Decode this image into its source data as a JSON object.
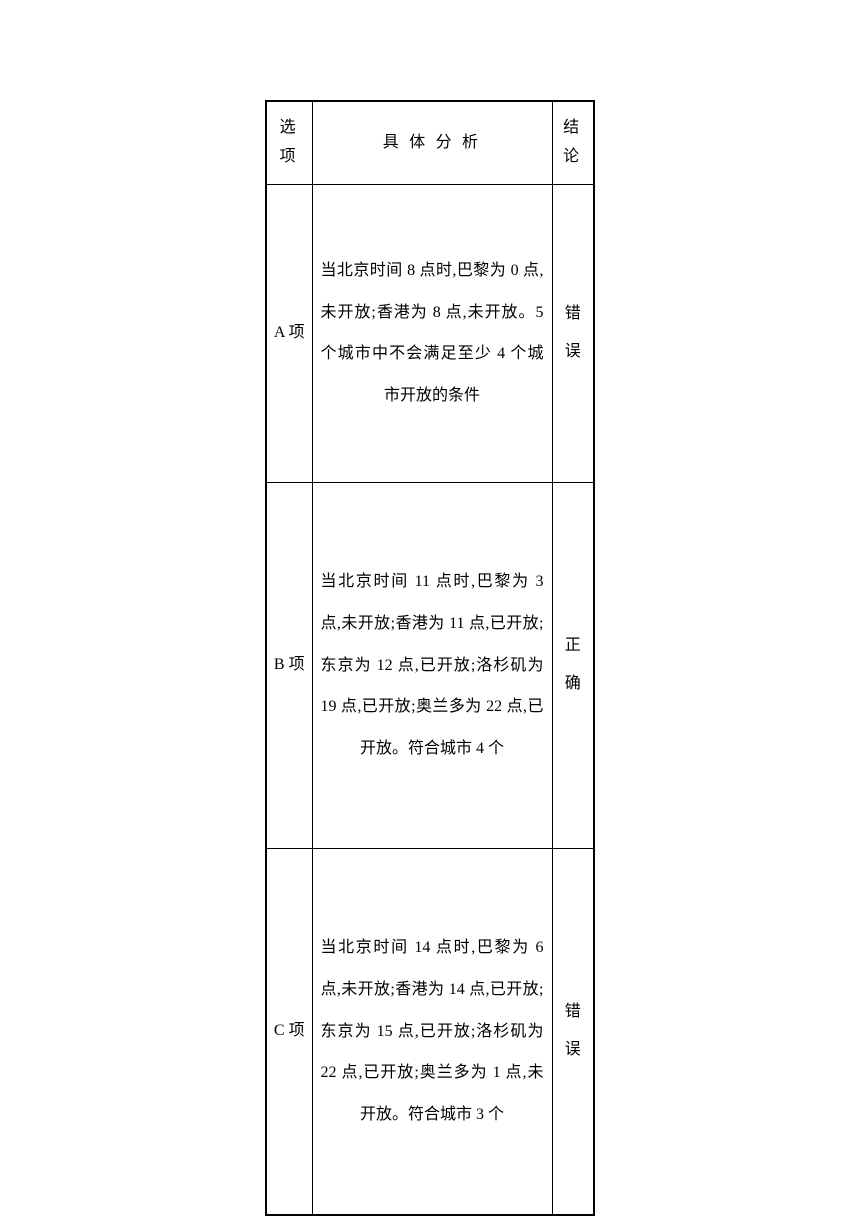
{
  "table": {
    "headers": {
      "option": "选项",
      "analysis": "具 体 分 析",
      "conclusion": "结论"
    },
    "rows": [
      {
        "option": "A 项",
        "analysis": "当北京时间 8 点时,巴黎为 0 点,未开放;香港为 8 点,未开放。5个城市中不会满足至少 4 个城市开放的条件",
        "conclusion": "错误"
      },
      {
        "option": "B 项",
        "analysis": "当北京时间 11 点时,巴黎为 3 点,未开放;香港为 11 点,已开放;东京为 12 点,已开放;洛杉矶为 19 点,已开放;奥兰多为 22 点,已开放。符合城市 4 个",
        "conclusion": "正确"
      },
      {
        "option": "C 项",
        "analysis": "当北京时间 14 点时,巴黎为 6 点,未开放;香港为 14 点,已开放;东京为 15 点,已开放;洛杉矶为 22 点,已开放;奥兰多为 1 点,未开放。符合城市 3 个",
        "conclusion": "错误"
      }
    ]
  },
  "styling": {
    "border_color": "#000000",
    "background_color": "#ffffff",
    "text_color": "#000000",
    "font_family": "SimSun",
    "font_size": 16,
    "line_height": 2.5,
    "column_widths": {
      "option": 46,
      "analysis": 240,
      "conclusion": 42
    }
  }
}
